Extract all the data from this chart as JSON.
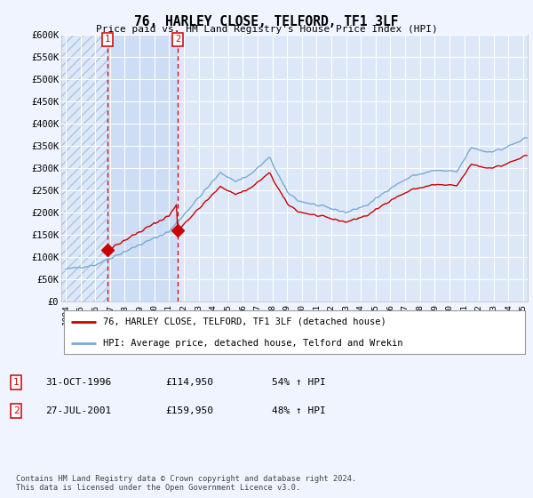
{
  "title": "76, HARLEY CLOSE, TELFORD, TF1 3LF",
  "subtitle": "Price paid vs. HM Land Registry's House Price Index (HPI)",
  "background_color": "#f0f4ff",
  "plot_bg_color": "#dce8f8",
  "highlight_color": "#ccddf5",
  "grid_color": "#ffffff",
  "ylim": [
    0,
    600000
  ],
  "yticks": [
    0,
    50000,
    100000,
    150000,
    200000,
    250000,
    300000,
    350000,
    400000,
    450000,
    500000,
    550000,
    600000
  ],
  "ytick_labels": [
    "£0",
    "£50K",
    "£100K",
    "£150K",
    "£200K",
    "£250K",
    "£300K",
    "£350K",
    "£400K",
    "£450K",
    "£500K",
    "£550K",
    "£600K"
  ],
  "purchase1_date": 1996.83,
  "purchase1_price": 114950,
  "purchase2_date": 2001.58,
  "purchase2_price": 159950,
  "hpi_line_color": "#7aaad4",
  "price_line_color": "#cc0000",
  "purchase_marker_color": "#cc0000",
  "legend_line1": "76, HARLEY CLOSE, TELFORD, TF1 3LF (detached house)",
  "legend_line2": "HPI: Average price, detached house, Telford and Wrekin",
  "table_row1": [
    "1",
    "31-OCT-1996",
    "£114,950",
    "54% ↑ HPI"
  ],
  "table_row2": [
    "2",
    "27-JUL-2001",
    "£159,950",
    "48% ↑ HPI"
  ],
  "footnote": "Contains HM Land Registry data © Crown copyright and database right 2024.\nThis data is licensed under the Open Government Licence v3.0.",
  "xtick_years": [
    1994,
    1995,
    1996,
    1997,
    1998,
    1999,
    2000,
    2001,
    2002,
    2003,
    2004,
    2005,
    2006,
    2007,
    2008,
    2009,
    2010,
    2011,
    2012,
    2013,
    2014,
    2015,
    2016,
    2017,
    2018,
    2019,
    2020,
    2021,
    2022,
    2023,
    2024,
    2025
  ],
  "xlim": [
    1993.7,
    2025.3
  ]
}
